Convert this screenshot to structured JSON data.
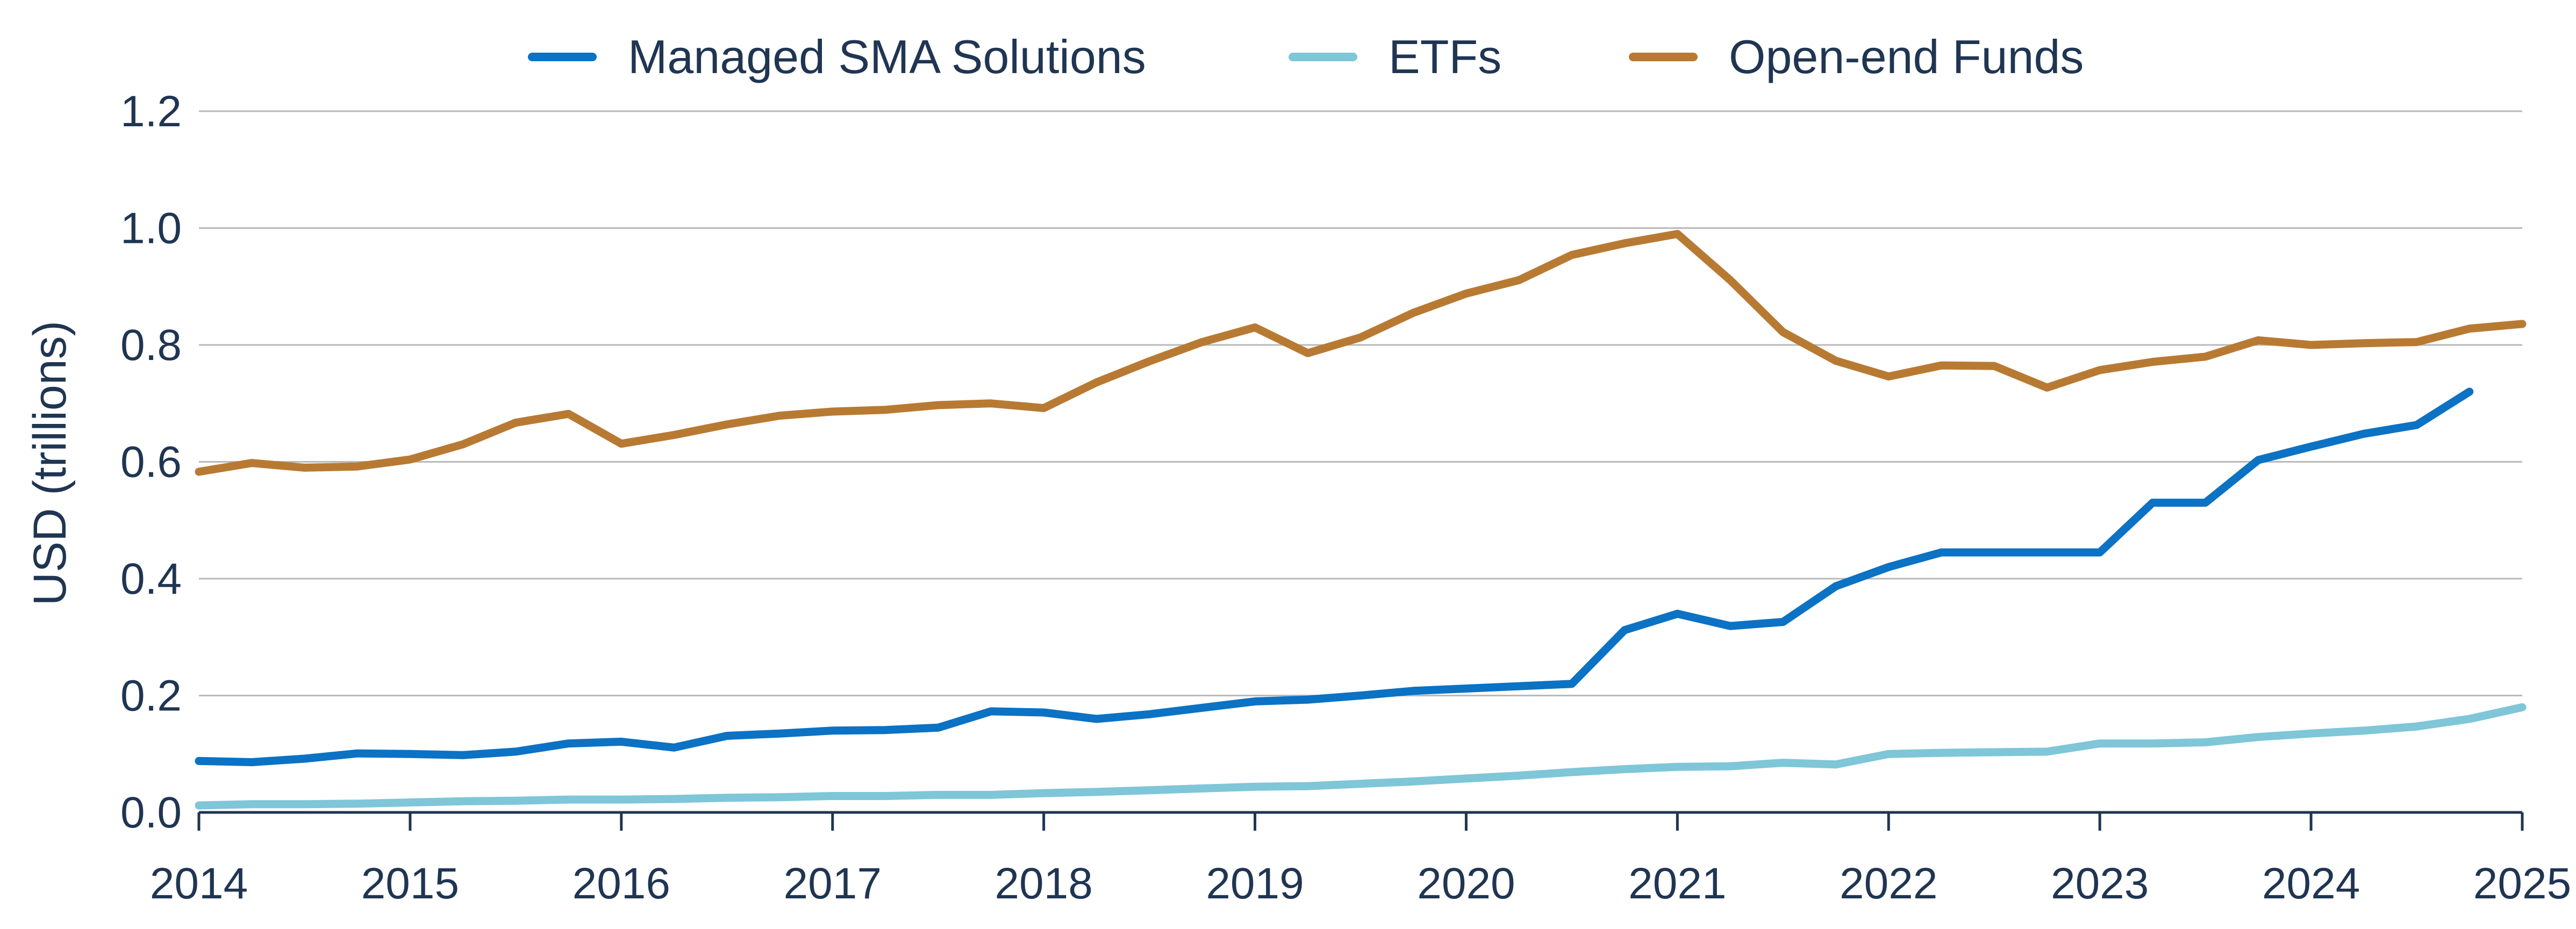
{
  "chart_data": {
    "type": "line",
    "title": "",
    "xlabel": "",
    "ylabel": "USD (trillions)",
    "xlim": [
      2014,
      2025
    ],
    "ylim": [
      0,
      1.2
    ],
    "y_ticks": [
      "0.0",
      "0.2",
      "0.4",
      "0.6",
      "0.8",
      "1.0",
      "1.2"
    ],
    "x_ticks": [
      "2014",
      "2015",
      "2016",
      "2017",
      "2018",
      "2019",
      "2020",
      "2021",
      "2022",
      "2023",
      "2024",
      "2025"
    ],
    "grid": true,
    "legend_position": "top",
    "x": [
      2014.0,
      2014.25,
      2014.5,
      2014.75,
      2015.0,
      2015.25,
      2015.5,
      2015.75,
      2016.0,
      2016.25,
      2016.5,
      2016.75,
      2017.0,
      2017.25,
      2017.5,
      2017.75,
      2018.0,
      2018.25,
      2018.5,
      2018.75,
      2019.0,
      2019.25,
      2019.5,
      2019.75,
      2020.0,
      2020.25,
      2020.5,
      2020.75,
      2021.0,
      2021.25,
      2021.5,
      2021.75,
      2022.0,
      2022.25,
      2022.5,
      2022.75,
      2023.0,
      2023.25,
      2023.5,
      2023.75,
      2024.0,
      2024.25,
      2024.5,
      2024.75,
      2025.0
    ],
    "series": [
      {
        "name": "Managed SMA Solutions",
        "color": "#0b72c4",
        "values": [
          0.088,
          0.086,
          0.092,
          0.101,
          0.1,
          0.098,
          0.104,
          0.118,
          0.121,
          0.111,
          0.131,
          0.135,
          0.14,
          0.141,
          0.145,
          0.173,
          0.171,
          0.16,
          0.168,
          0.179,
          0.19,
          0.193,
          0.2,
          0.208,
          0.212,
          0.216,
          0.22,
          0.312,
          0.34,
          0.319,
          0.326,
          0.387,
          0.42,
          0.445,
          0.445,
          0.445,
          0.445,
          0.53,
          0.53,
          0.603,
          0.626,
          0.648,
          0.663,
          0.72,
          null
        ]
      },
      {
        "name": "ETFs",
        "color": "#7ec6d8",
        "values": [
          0.012,
          0.014,
          0.014,
          0.015,
          0.017,
          0.019,
          0.02,
          0.022,
          0.022,
          0.023,
          0.025,
          0.026,
          0.028,
          0.028,
          0.03,
          0.03,
          0.033,
          0.035,
          0.038,
          0.041,
          0.044,
          0.045,
          0.049,
          0.053,
          0.058,
          0.063,
          0.069,
          0.074,
          0.078,
          0.079,
          0.085,
          0.082,
          0.1,
          0.102,
          0.103,
          0.104,
          0.118,
          0.118,
          0.12,
          0.129,
          0.135,
          0.14,
          0.147,
          0.16,
          0.18
        ]
      },
      {
        "name": "Open-end Funds",
        "color": "#b87a33",
        "values": [
          0.583,
          0.598,
          0.59,
          0.592,
          0.604,
          0.63,
          0.667,
          0.682,
          0.631,
          0.646,
          0.664,
          0.679,
          0.686,
          0.689,
          0.697,
          0.7,
          0.692,
          0.736,
          0.772,
          0.805,
          0.83,
          0.786,
          0.813,
          0.855,
          0.888,
          0.911,
          0.954,
          0.974,
          0.99,
          0.911,
          0.822,
          0.773,
          0.746,
          0.765,
          0.764,
          0.727,
          0.757,
          0.771,
          0.78,
          0.808,
          0.8,
          0.803,
          0.805,
          0.828,
          0.836
        ]
      }
    ]
  }
}
